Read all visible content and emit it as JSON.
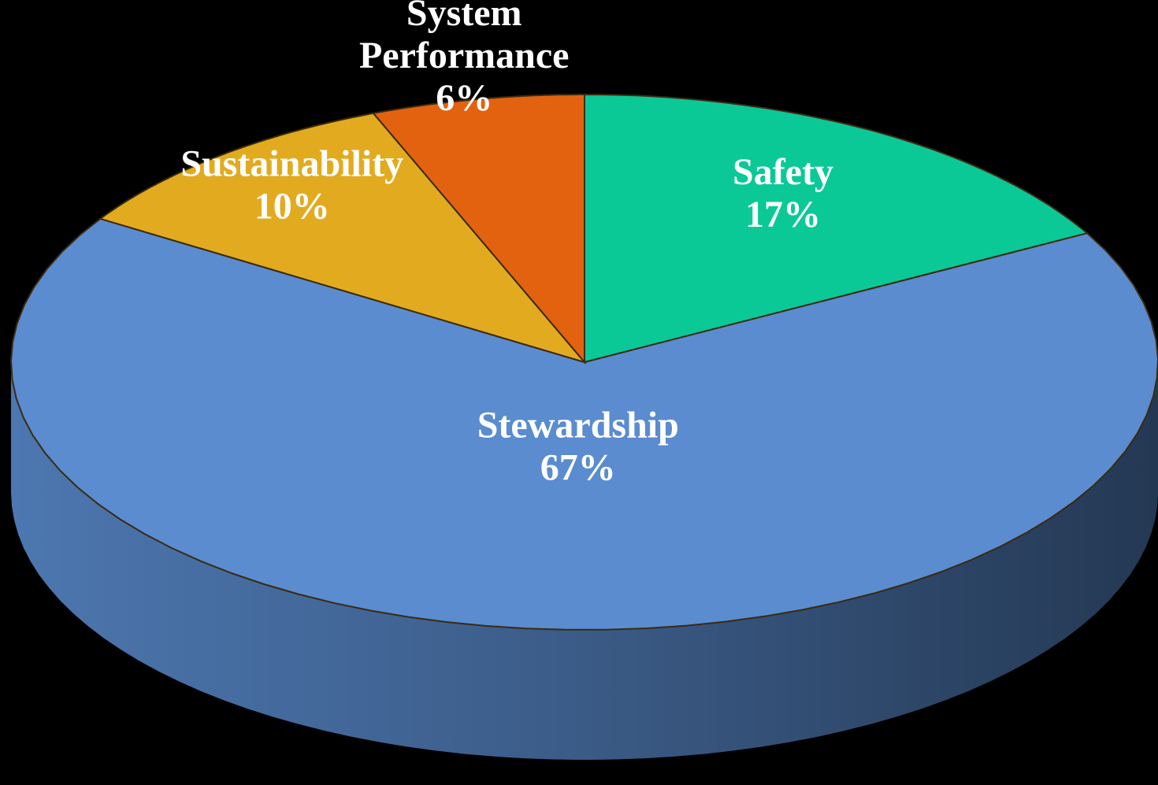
{
  "chart_data": {
    "type": "pie",
    "categories": [
      "Safety",
      "Stewardship",
      "Sustainability",
      "System Performance"
    ],
    "values": [
      17,
      67,
      10,
      6
    ],
    "value_labels": [
      "17%",
      "67%",
      "10%",
      "6%"
    ],
    "colors": [
      "#0ac997",
      "#5a8ccf",
      "#e2ab1f",
      "#e36210"
    ]
  }
}
